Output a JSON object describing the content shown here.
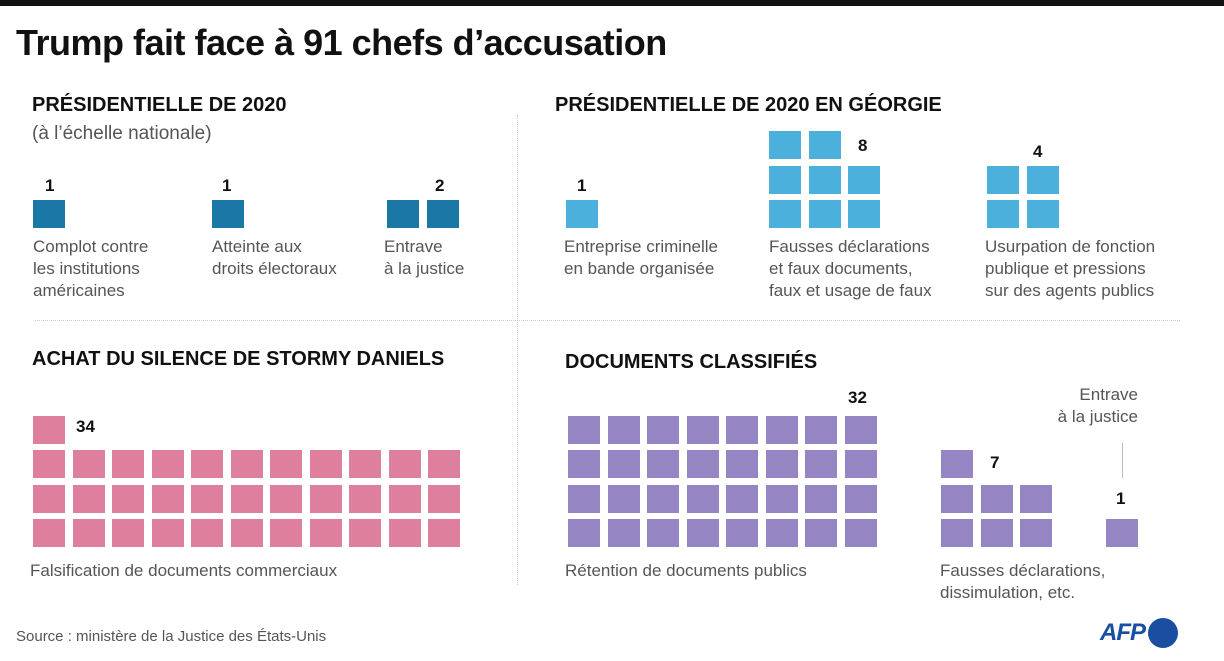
{
  "title": "Trump fait face à 91 chefs d’accusation",
  "source": "Source : ministère de la Justice des États-Unis",
  "logo": "AFP",
  "colors": {
    "national": "#1b78a6",
    "georgia": "#4bb1dc",
    "stormy": "#de7f9d",
    "documents": "#9585c3"
  },
  "chart_data": {
    "type": "waffle",
    "title": "Trump fait face à 91 chefs d’accusation",
    "sections": [
      {
        "name": "PRÉSIDENTIELLE DE 2020",
        "subtitle": "(à l’échelle nationale)",
        "color": "#1b78a6",
        "groups": [
          {
            "label": "Complot contre\nles institutions\naméricaines",
            "value": 1
          },
          {
            "label": "Atteinte aux\ndroits électoraux",
            "value": 1
          },
          {
            "label": "Entrave\nà la justice",
            "value": 2
          }
        ]
      },
      {
        "name": "PRÉSIDENTIELLE DE 2020 EN GÉORGIE",
        "color": "#4bb1dc",
        "groups": [
          {
            "label": "Entreprise criminelle\nen bande organisée",
            "value": 1
          },
          {
            "label": "Fausses déclarations\net faux documents,\nfaux et usage de faux",
            "value": 8
          },
          {
            "label": "Usurpation de fonction\npublique et pressions\nsur des agents publics",
            "value": 4
          }
        ]
      },
      {
        "name": "ACHAT DU SILENCE DE STORMY DANIELS",
        "color": "#de7f9d",
        "groups": [
          {
            "label": "Falsification de documents commerciaux",
            "value": 34
          }
        ]
      },
      {
        "name": "DOCUMENTS CLASSIFIÉS",
        "color": "#9585c3",
        "groups": [
          {
            "label": "Rétention de documents publics",
            "value": 32
          },
          {
            "label": "Fausses déclarations,\ndissimulation, etc.",
            "value": 7
          },
          {
            "label": "Entrave\nà la justice",
            "value": 1
          }
        ]
      }
    ]
  }
}
